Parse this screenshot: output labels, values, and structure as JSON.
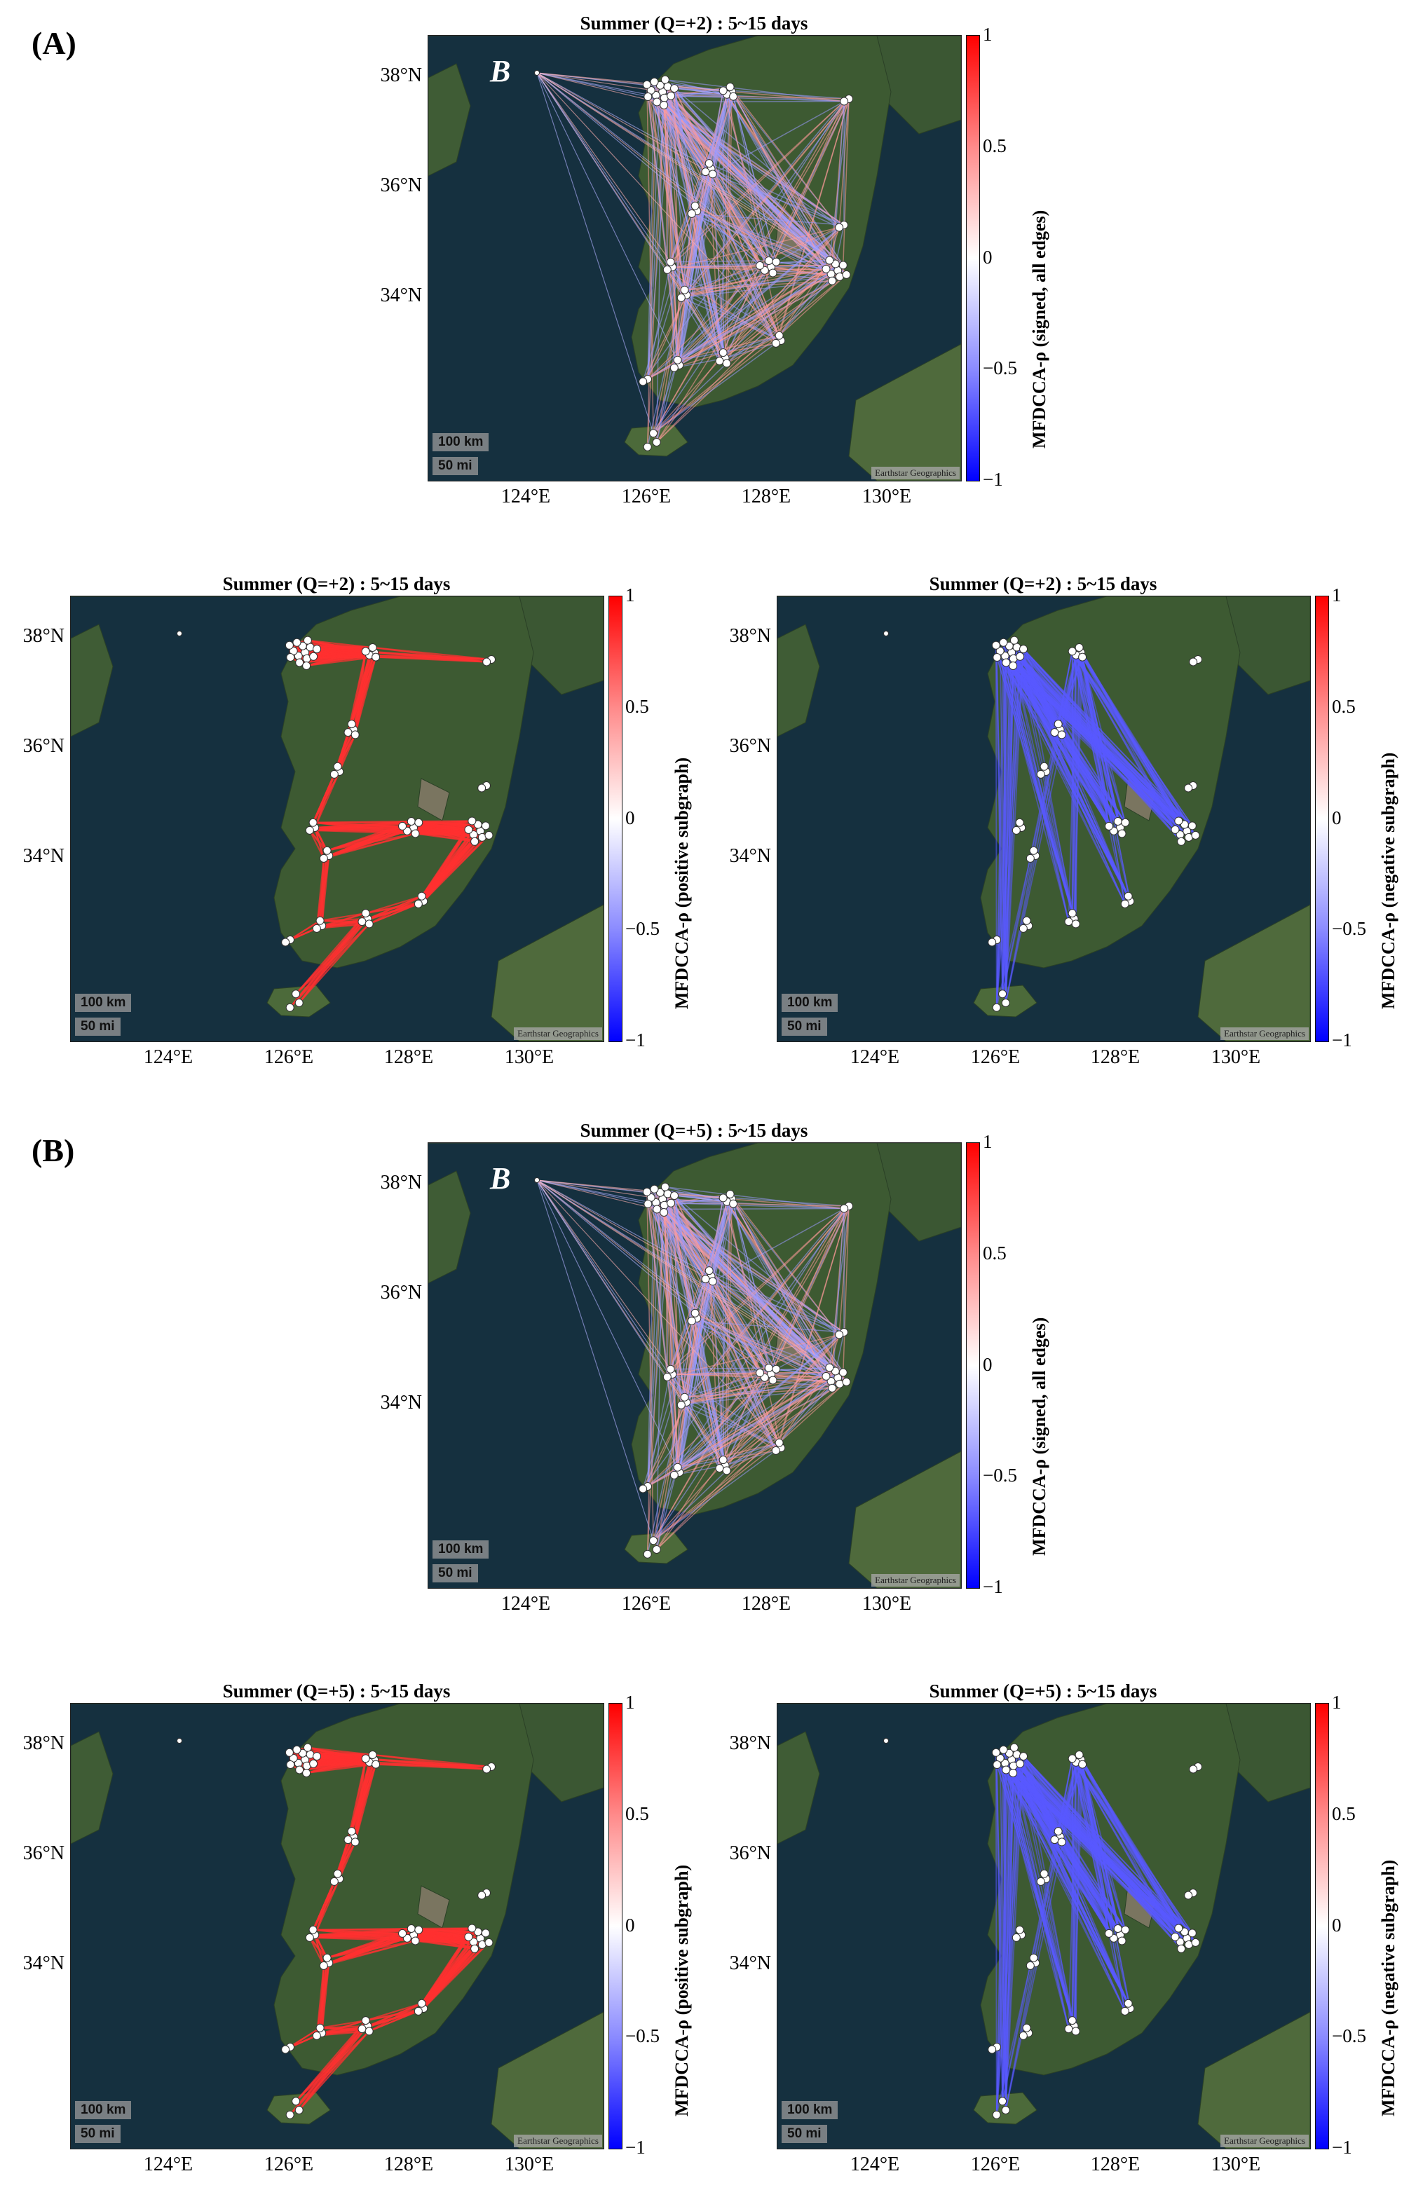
{
  "section_labels": {
    "A": "(A)",
    "B": "(B)"
  },
  "colorbar_ticks": [
    "1",
    "0.5",
    "0",
    "−0.5",
    "−1"
  ],
  "latitude_ticks": [
    "38°N",
    "36°N",
    "34°N"
  ],
  "longitude_ticks": [
    "124°E",
    "126°E",
    "128°E",
    "130°E"
  ],
  "scale_km": "100 km",
  "scale_mi": "50 mi",
  "attribution": "Earthstar Geographics",
  "station_B_label": "B",
  "colors": {
    "positive": "#ff3030",
    "negative": "#3030ff",
    "ocean": "#15303f",
    "land": "#3d5a32"
  },
  "panels": [
    {
      "id": "A-signed",
      "title": "Summer (Q=+2) : 5~15 days",
      "colorbar_label": "MFDCCA-ρ (signed, all edges)",
      "kind": "signed",
      "show_B": true
    },
    {
      "id": "A-positive",
      "title": "Summer (Q=+2) : 5~15 days",
      "colorbar_label": "MFDCCA-ρ (positive subgraph)",
      "kind": "positive",
      "show_B": false
    },
    {
      "id": "A-negative",
      "title": "Summer (Q=+2) : 5~15 days",
      "colorbar_label": "MFDCCA-ρ (negative subgraph)",
      "kind": "negative",
      "show_B": false
    },
    {
      "id": "B-signed",
      "title": "Summer (Q=+5) : 5~15 days",
      "colorbar_label": "MFDCCA-ρ (signed, all edges)",
      "kind": "signed",
      "show_B": true
    },
    {
      "id": "B-positive",
      "title": "Summer (Q=+5) : 5~15 days",
      "colorbar_label": "MFDCCA-ρ (positive subgraph)",
      "kind": "positive",
      "show_B": false
    },
    {
      "id": "B-negative",
      "title": "Summer (Q=+5) : 5~15 days",
      "colorbar_label": "MFDCCA-ρ (negative subgraph)",
      "kind": "negative",
      "show_B": false
    }
  ]
}
